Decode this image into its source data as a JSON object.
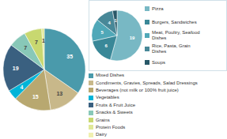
{
  "chart_data": [
    {
      "type": "pie",
      "categories": [
        "Mixed Dishes",
        "Condiments, Gravies, Spreads, Salad Dressings",
        "Beverages (not milk or 100% fruit juice)",
        "Vegetables",
        "Fruits & Fruit Juice",
        "Snacks & Sweets",
        "Grains",
        "Protein Foods",
        "Dairy"
      ],
      "values": [
        35,
        13,
        15,
        4,
        19,
        7,
        7,
        1,
        0
      ],
      "colors": [
        "#4a9aab",
        "#c8b88a",
        "#b8a870",
        "#00b4d8",
        "#3a6080",
        "#88c8b8",
        "#c8d870",
        "#e0e898",
        "#f0f0b0"
      ],
      "data_labels": true,
      "legend": "right"
    },
    {
      "type": "pie",
      "categories": [
        "Pizza",
        "Burgers, Sandwiches",
        "Meat, Poultry, Seafood\nDishes",
        "Rice, Pasta, Grain\nDishes",
        "Soups"
      ],
      "values": [
        19,
        6,
        5,
        4,
        1
      ],
      "colors": [
        "#78b8c4",
        "#3a8898",
        "#50a8b8",
        "#488898",
        "#285868"
      ],
      "data_labels": true,
      "legend": "right"
    }
  ]
}
